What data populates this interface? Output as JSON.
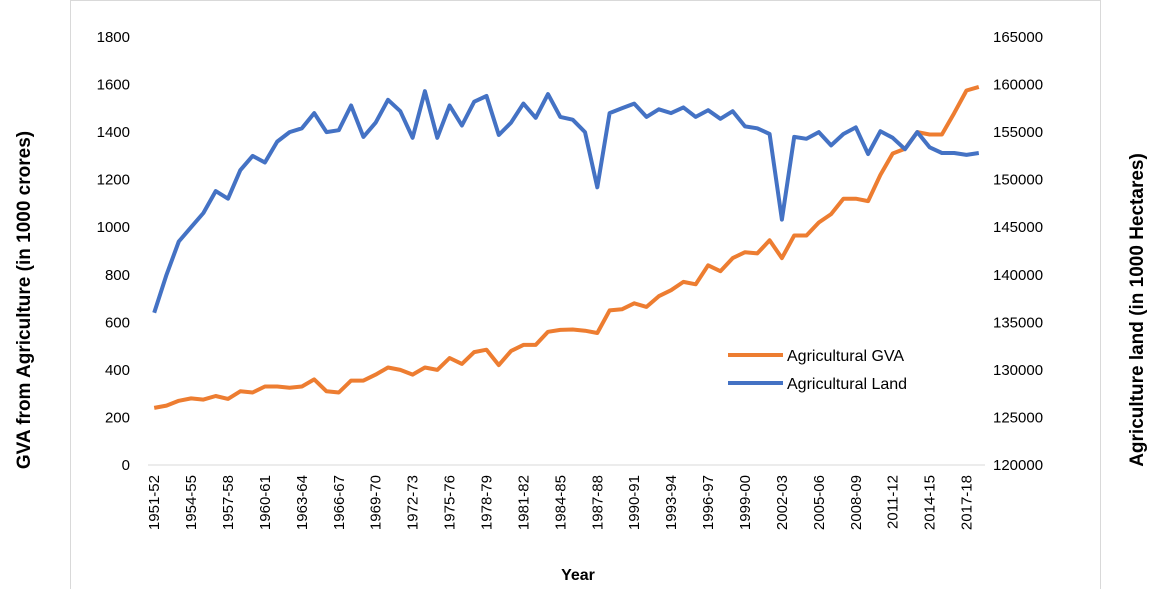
{
  "chart_data": {
    "type": "line",
    "x_label": "Year",
    "y_label": "GVA from Agriculture (in 1000 crores)",
    "y2_label": "Agriculture land (in 1000 Hectares)",
    "categories": [
      "1951-52",
      null,
      null,
      "1954-55",
      null,
      null,
      "1957-58",
      null,
      null,
      "1960-61",
      null,
      null,
      "1963-64",
      null,
      null,
      "1966-67",
      null,
      null,
      "1969-70",
      null,
      null,
      "1972-73",
      null,
      null,
      "1975-76",
      null,
      null,
      "1978-79",
      null,
      null,
      "1981-82",
      null,
      null,
      "1984-85",
      null,
      null,
      "1987-88",
      null,
      null,
      "1990-91",
      null,
      null,
      "1993-94",
      null,
      null,
      "1996-97",
      null,
      null,
      "1999-00",
      null,
      null,
      "2002-03",
      null,
      null,
      "2005-06",
      null,
      null,
      "2008-09",
      null,
      null,
      "2011-12",
      null,
      null,
      "2014-15",
      null,
      null,
      "2017-18",
      null
    ],
    "series": [
      {
        "name": "Agricultural GVA",
        "color": "#ed7d31",
        "values": [
          240,
          250,
          270,
          280,
          275,
          290,
          278,
          310,
          305,
          330,
          330,
          325,
          330,
          360,
          310,
          305,
          355,
          355,
          380,
          410,
          400,
          380,
          410,
          400,
          450,
          425,
          475,
          485,
          420,
          480,
          505,
          505,
          560,
          568,
          570,
          565,
          555,
          650,
          655,
          680,
          665,
          710,
          735,
          770,
          760,
          840,
          815,
          870,
          895,
          890,
          945,
          870,
          965,
          965,
          1020,
          1055,
          1120,
          1120,
          1110,
          1220,
          1310,
          1330,
          1400,
          1390,
          1390,
          1480,
          1575,
          1590
        ]
      },
      {
        "name": "Agricultural Land",
        "color": "#4472c4",
        "axis": "y2",
        "values": [
          136000,
          140000,
          143500,
          145000,
          146500,
          148800,
          148000,
          151000,
          152500,
          151800,
          154000,
          155000,
          155400,
          157000,
          155000,
          155200,
          157800,
          154500,
          156000,
          158400,
          157200,
          154400,
          159300,
          154400,
          157800,
          155700,
          158200,
          158800,
          154700,
          156000,
          158000,
          156500,
          159000,
          156600,
          156300,
          155000,
          149200,
          157000,
          157500,
          158000,
          156600,
          157400,
          157000,
          157600,
          156600,
          157300,
          156400,
          157200,
          155600,
          155400,
          154800,
          145800,
          154500,
          154300,
          155000,
          153600,
          154800,
          155500,
          152700,
          155100,
          154400,
          153200,
          155000,
          153400,
          152800,
          152800,
          152600,
          152800
        ]
      }
    ],
    "ylim": [
      0,
      1800
    ],
    "yticks": [
      0,
      200,
      400,
      600,
      800,
      1000,
      1200,
      1400,
      1600,
      1800
    ],
    "y2lim": [
      120000,
      165000
    ],
    "y2ticks": [
      120000,
      125000,
      130000,
      135000,
      140000,
      145000,
      150000,
      155000,
      160000,
      165000
    ],
    "grid": false,
    "legend": "right"
  }
}
